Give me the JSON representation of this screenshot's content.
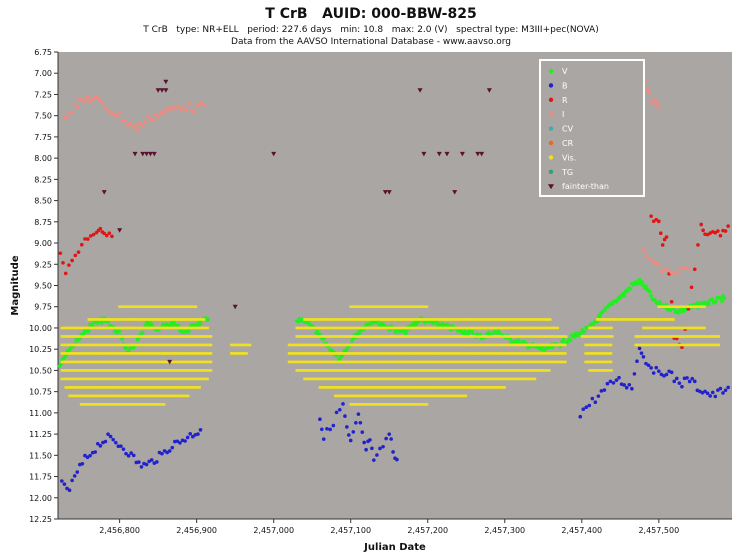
{
  "title": "T CrB   AUID: 000-BBW-825",
  "subtitle": "T CrB   type: NR+ELL   period: 227.6 days   min: 10.8   max: 2.0 (V)   spectral type: M3III+pec(NOVA)",
  "source": "Data from the AAVSO International Database - www.aavso.org",
  "colors": {
    "plot_bg": "#a9a6a3",
    "V": "#22ee22",
    "B": "#2222cc",
    "R": "#e01515",
    "I": "#f08a80",
    "CV": "#3ab0a0",
    "CR": "#ee6622",
    "Vis": "#f0e020",
    "TG": "#30a080",
    "fainter": "#5a1030"
  },
  "chart_data": {
    "type": "scatter",
    "title": "T CrB   AUID: 000-BBW-825",
    "xlabel": "Julian Date",
    "ylabel": "Magnitude",
    "xlim": [
      2456720,
      2457595
    ],
    "ylim": [
      6.75,
      12.25
    ],
    "y_inverted": true,
    "x_ticks": [
      {
        "value": 2456800,
        "label": "2,456,800"
      },
      {
        "value": 2456900,
        "label": "2,456,900"
      },
      {
        "value": 2457000,
        "label": "2,457,000"
      },
      {
        "value": 2457100,
        "label": "2,457,100"
      },
      {
        "value": 2457200,
        "label": "2,457,200"
      },
      {
        "value": 2457300,
        "label": "2,457,300"
      },
      {
        "value": 2457400,
        "label": "2,457,400"
      },
      {
        "value": 2457500,
        "label": "2,457,500"
      }
    ],
    "y_ticks": [
      {
        "value": 6.75,
        "label": "6.75"
      },
      {
        "value": 7.0,
        "label": "7.00"
      },
      {
        "value": 7.25,
        "label": "7.25"
      },
      {
        "value": 7.5,
        "label": "7.50"
      },
      {
        "value": 7.75,
        "label": "7.75"
      },
      {
        "value": 8.0,
        "label": "8.00"
      },
      {
        "value": 8.25,
        "label": "8.25"
      },
      {
        "value": 8.5,
        "label": "8.50"
      },
      {
        "value": 8.75,
        "label": "8.75"
      },
      {
        "value": 9.0,
        "label": "9.00"
      },
      {
        "value": 9.25,
        "label": "9.25"
      },
      {
        "value": 9.5,
        "label": "9.50"
      },
      {
        "value": 9.75,
        "label": "9.75"
      },
      {
        "value": 10.0,
        "label": "10.00"
      },
      {
        "value": 10.25,
        "label": "10.25"
      },
      {
        "value": 10.5,
        "label": "10.50"
      },
      {
        "value": 10.75,
        "label": "10.75"
      },
      {
        "value": 11.0,
        "label": "11.00"
      },
      {
        "value": 11.25,
        "label": "11.25"
      },
      {
        "value": 11.5,
        "label": "11.50"
      },
      {
        "value": 11.75,
        "label": "11.75"
      },
      {
        "value": 12.0,
        "label": "12.00"
      },
      {
        "value": 12.25,
        "label": "12.25"
      }
    ],
    "grid": false,
    "legend_position": "top-right",
    "legend": [
      "V",
      "B",
      "R",
      "I",
      "CV",
      "CR",
      "Vis.",
      "TG",
      "fainter-than"
    ],
    "series": [
      {
        "name": "V",
        "color_key": "V",
        "band": 0.03,
        "points": [
          [
            2456722,
            10.45
          ],
          [
            2456735,
            10.25
          ],
          [
            2456750,
            10.1
          ],
          [
            2456765,
            9.95
          ],
          [
            2456780,
            9.9
          ],
          [
            2456790,
            10.0
          ],
          [
            2456800,
            10.05
          ],
          [
            2456810,
            10.3
          ],
          [
            2456820,
            10.2
          ],
          [
            2456835,
            9.95
          ],
          [
            2456850,
            10.0
          ],
          [
            2456870,
            9.95
          ],
          [
            2456885,
            10.05
          ],
          [
            2456900,
            9.95
          ],
          [
            2456915,
            9.9
          ],
          [
            2457030,
            9.9
          ],
          [
            2457045,
            9.95
          ],
          [
            2457060,
            10.1
          ],
          [
            2457075,
            10.25
          ],
          [
            2457085,
            10.4
          ],
          [
            2457095,
            10.25
          ],
          [
            2457105,
            10.1
          ],
          [
            2457115,
            10.0
          ],
          [
            2457130,
            9.9
          ],
          [
            2457150,
            10.0
          ],
          [
            2457170,
            10.05
          ],
          [
            2457190,
            9.9
          ],
          [
            2457210,
            9.95
          ],
          [
            2457230,
            10.0
          ],
          [
            2457250,
            10.05
          ],
          [
            2457270,
            10.1
          ],
          [
            2457290,
            10.05
          ],
          [
            2457310,
            10.15
          ],
          [
            2457330,
            10.2
          ],
          [
            2457350,
            10.25
          ],
          [
            2457370,
            10.2
          ],
          [
            2457390,
            10.1
          ],
          [
            2457410,
            10.0
          ],
          [
            2457425,
            9.85
          ],
          [
            2457440,
            9.7
          ],
          [
            2457455,
            9.6
          ],
          [
            2457465,
            9.5
          ],
          [
            2457475,
            9.45
          ],
          [
            2457485,
            9.55
          ],
          [
            2457495,
            9.7
          ],
          [
            2457510,
            9.75
          ],
          [
            2457525,
            9.8
          ],
          [
            2457545,
            9.75
          ],
          [
            2457565,
            9.7
          ],
          [
            2457585,
            9.65
          ]
        ]
      },
      {
        "name": "B",
        "color_key": "B",
        "band": 0.05,
        "points": [
          [
            2456725,
            11.85
          ],
          [
            2456735,
            11.9
          ],
          [
            2456745,
            11.7
          ],
          [
            2456755,
            11.55
          ],
          [
            2456765,
            11.45
          ],
          [
            2456775,
            11.35
          ],
          [
            2456785,
            11.3
          ],
          [
            2456795,
            11.35
          ],
          [
            2456805,
            11.4
          ],
          [
            2456815,
            11.5
          ],
          [
            2456825,
            11.6
          ],
          [
            2456835,
            11.62
          ],
          [
            2456845,
            11.55
          ],
          [
            2456855,
            11.5
          ],
          [
            2456865,
            11.4
          ],
          [
            2456875,
            11.35
          ],
          [
            2456885,
            11.3
          ],
          [
            2456895,
            11.25
          ],
          [
            2456905,
            11.2
          ],
          [
            2457060,
            11.05
          ],
          [
            2457065,
            11.3
          ],
          [
            2457090,
            10.9
          ],
          [
            2457095,
            11.2
          ],
          [
            2457100,
            11.35
          ],
          [
            2457110,
            11.05
          ],
          [
            2457115,
            11.25
          ],
          [
            2457120,
            11.45
          ],
          [
            2457125,
            11.3
          ],
          [
            2457130,
            11.6
          ],
          [
            2457150,
            11.25
          ],
          [
            2457155,
            11.45
          ],
          [
            2457160,
            11.55
          ],
          [
            2457398,
            11.0
          ],
          [
            2457445,
            10.6
          ],
          [
            2457455,
            10.65
          ],
          [
            2457465,
            10.7
          ],
          [
            2457475,
            10.2
          ],
          [
            2457480,
            10.35
          ],
          [
            2457490,
            10.45
          ],
          [
            2457500,
            10.55
          ],
          [
            2457510,
            10.5
          ],
          [
            2457520,
            10.6
          ],
          [
            2457530,
            10.65
          ],
          [
            2457540,
            10.6
          ],
          [
            2457550,
            10.7
          ],
          [
            2457560,
            10.75
          ],
          [
            2457570,
            10.8
          ],
          [
            2457580,
            10.75
          ],
          [
            2457590,
            10.7
          ]
        ]
      },
      {
        "name": "R",
        "color_key": "R",
        "band": 0.03,
        "points": [
          [
            2456723,
            9.15
          ],
          [
            2456730,
            9.35
          ],
          [
            2456755,
            8.95
          ],
          [
            2456770,
            8.9
          ],
          [
            2456775,
            8.85
          ],
          [
            2456780,
            8.9
          ],
          [
            2456790,
            8.92
          ],
          [
            2457490,
            8.7
          ],
          [
            2457500,
            8.75
          ],
          [
            2457505,
            9.0
          ],
          [
            2457510,
            8.95
          ],
          [
            2457520,
            10.1
          ],
          [
            2457530,
            10.25
          ],
          [
            2457555,
            8.8
          ],
          [
            2457560,
            8.9
          ],
          [
            2457570,
            8.85
          ],
          [
            2457580,
            8.9
          ],
          [
            2457590,
            8.8
          ]
        ]
      },
      {
        "name": "I",
        "color_key": "I",
        "band": 0.05,
        "points": [
          [
            2456728,
            7.5
          ],
          [
            2456738,
            7.42
          ],
          [
            2456748,
            7.35
          ],
          [
            2456758,
            7.3
          ],
          [
            2456768,
            7.3
          ],
          [
            2456778,
            7.38
          ],
          [
            2456790,
            7.45
          ],
          [
            2456800,
            7.5
          ],
          [
            2456810,
            7.58
          ],
          [
            2456820,
            7.65
          ],
          [
            2456830,
            7.6
          ],
          [
            2456840,
            7.52
          ],
          [
            2456850,
            7.48
          ],
          [
            2456860,
            7.45
          ],
          [
            2456870,
            7.42
          ],
          [
            2456880,
            7.38
          ],
          [
            2456890,
            7.4
          ],
          [
            2456900,
            7.42
          ],
          [
            2456910,
            7.38
          ],
          [
            2457480,
            7.1
          ],
          [
            2457485,
            7.2
          ],
          [
            2457490,
            7.3
          ],
          [
            2457495,
            7.35
          ],
          [
            2457500,
            7.4
          ],
          [
            2457480,
            9.1
          ],
          [
            2457500,
            9.3
          ],
          [
            2457520,
            9.35
          ],
          [
            2457540,
            9.3
          ]
        ]
      },
      {
        "name": "Vis.",
        "color_key": "Vis",
        "rows": [
          {
            "y": 9.75,
            "ranges": [
              [
                2456800,
                2456900
              ],
              [
                2457100,
                2457200
              ],
              [
                2457500,
                2457560
              ]
            ]
          },
          {
            "y": 9.9,
            "ranges": [
              [
                2456760,
                2456910
              ],
              [
                2457040,
                2457360
              ],
              [
                2457420,
                2457520
              ]
            ]
          },
          {
            "y": 10.0,
            "ranges": [
              [
                2456725,
                2456915
              ],
              [
                2457030,
                2457370
              ],
              [
                2457410,
                2457440
              ],
              [
                2457480,
                2457560
              ]
            ]
          },
          {
            "y": 10.1,
            "ranges": [
              [
                2456725,
                2456920
              ],
              [
                2457030,
                2457380
              ],
              [
                2457400,
                2457440
              ],
              [
                2457470,
                2457580
              ]
            ]
          },
          {
            "y": 10.2,
            "ranges": [
              [
                2456725,
                2456920
              ],
              [
                2456945,
                2456970
              ],
              [
                2457020,
                2457380
              ],
              [
                2457405,
                2457440
              ],
              [
                2457470,
                2457580
              ]
            ]
          },
          {
            "y": 10.3,
            "ranges": [
              [
                2456725,
                2456920
              ],
              [
                2456945,
                2456965
              ],
              [
                2457020,
                2457380
              ],
              [
                2457405,
                2457440
              ]
            ]
          },
          {
            "y": 10.4,
            "ranges": [
              [
                2456725,
                2456920
              ],
              [
                2457020,
                2457380
              ],
              [
                2457405,
                2457440
              ]
            ]
          },
          {
            "y": 10.5,
            "ranges": [
              [
                2456725,
                2456920
              ],
              [
                2457030,
                2457360
              ],
              [
                2457410,
                2457440
              ]
            ]
          },
          {
            "y": 10.6,
            "ranges": [
              [
                2456725,
                2456915
              ],
              [
                2457040,
                2457340
              ]
            ]
          },
          {
            "y": 10.7,
            "ranges": [
              [
                2456730,
                2456905
              ],
              [
                2457060,
                2457300
              ]
            ]
          },
          {
            "y": 10.8,
            "ranges": [
              [
                2456735,
                2456890
              ],
              [
                2457080,
                2457250
              ]
            ]
          },
          {
            "y": 10.9,
            "ranges": [
              [
                2456750,
                2456860
              ],
              [
                2457100,
                2457200
              ]
            ]
          }
        ]
      },
      {
        "name": "fainter-than",
        "color_key": "fainter",
        "points": [
          [
            2456780,
            8.4
          ],
          [
            2456800,
            8.85
          ],
          [
            2456820,
            7.95
          ],
          [
            2456830,
            7.95
          ],
          [
            2456835,
            7.95
          ],
          [
            2456840,
            7.95
          ],
          [
            2456845,
            7.95
          ],
          [
            2456850,
            7.2
          ],
          [
            2456855,
            7.2
          ],
          [
            2456860,
            7.2
          ],
          [
            2456860,
            7.1
          ],
          [
            2456865,
            10.4
          ],
          [
            2457000,
            7.95
          ],
          [
            2457145,
            8.4
          ],
          [
            2457150,
            8.4
          ],
          [
            2457190,
            7.2
          ],
          [
            2457195,
            7.95
          ],
          [
            2457215,
            7.95
          ],
          [
            2457225,
            7.95
          ],
          [
            2457235,
            8.4
          ],
          [
            2457245,
            7.95
          ],
          [
            2457265,
            7.95
          ],
          [
            2457270,
            7.95
          ],
          [
            2457280,
            7.2
          ],
          [
            2456950,
            9.75
          ]
        ]
      }
    ]
  }
}
